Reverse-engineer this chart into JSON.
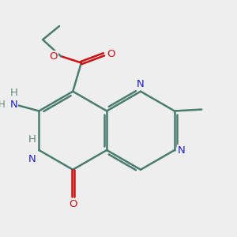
{
  "bg_color": "#eeeeee",
  "bond_color": "#4a7c6f",
  "N_color": "#2222cc",
  "NH_color": "#5a8a7a",
  "O_color": "#cc1111",
  "C_color": "#333333",
  "bond_lw": 1.8,
  "double_inner_lw": 1.8,
  "xlim": [
    2.0,
    9.5
  ],
  "ylim": [
    2.0,
    9.8
  ],
  "figsize": [
    3.0,
    3.0
  ],
  "dpi": 100
}
